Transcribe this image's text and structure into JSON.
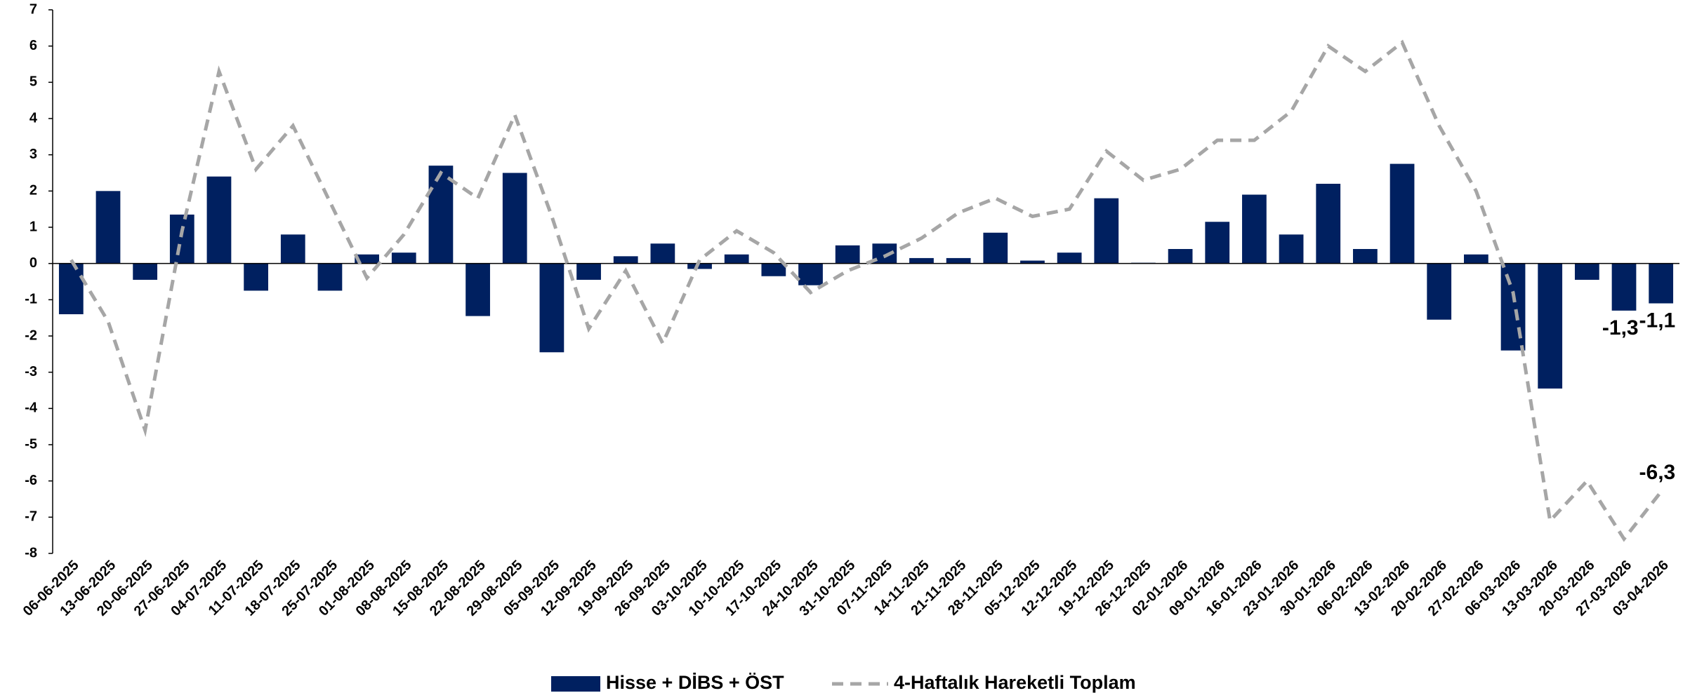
{
  "chart_data": {
    "type": "bar_line",
    "categories": [
      "06-06-2025",
      "13-06-2025",
      "20-06-2025",
      "27-06-2025",
      "04-07-2025",
      "11-07-2025",
      "18-07-2025",
      "25-07-2025",
      "01-08-2025",
      "08-08-2025",
      "15-08-2025",
      "22-08-2025",
      "29-08-2025",
      "05-09-2025",
      "12-09-2025",
      "19-09-2025",
      "26-09-2025",
      "03-10-2025",
      "10-10-2025",
      "17-10-2025",
      "24-10-2025",
      "31-10-2025",
      "07-11-2025",
      "14-11-2025",
      "21-11-2025",
      "28-11-2025",
      "05-12-2025",
      "12-12-2025",
      "19-12-2025",
      "26-12-2025",
      "02-01-2026",
      "09-01-2026",
      "16-01-2026",
      "23-01-2026",
      "30-01-2026",
      "06-02-2026",
      "13-02-2026",
      "20-02-2026",
      "27-02-2026",
      "06-03-2026",
      "13-03-2026",
      "20-03-2026",
      "27-03-2026",
      "03-04-2026"
    ],
    "series": [
      {
        "name": "Hisse + DİBS + ÖST",
        "type": "bar",
        "color": "#002060",
        "values": [
          -1.4,
          2.0,
          -0.45,
          1.35,
          2.4,
          -0.75,
          0.8,
          -0.75,
          0.25,
          0.3,
          2.7,
          -1.45,
          2.5,
          -2.45,
          -0.45,
          0.2,
          0.55,
          -0.15,
          0.25,
          -0.35,
          -0.6,
          0.5,
          0.55,
          0.15,
          0.15,
          0.85,
          0.08,
          0.3,
          1.8,
          0.02,
          0.4,
          1.15,
          1.9,
          0.8,
          2.2,
          0.4,
          2.75,
          -1.55,
          0.25,
          -2.4,
          -3.45,
          -0.45,
          -1.3,
          -1.1
        ],
        "value_labels": [
          null,
          null,
          null,
          null,
          null,
          null,
          null,
          null,
          null,
          null,
          null,
          null,
          null,
          null,
          null,
          null,
          null,
          null,
          null,
          null,
          null,
          null,
          null,
          null,
          null,
          null,
          null,
          null,
          null,
          null,
          null,
          null,
          null,
          null,
          null,
          null,
          null,
          null,
          null,
          null,
          null,
          null,
          "-1,3",
          "-1,1"
        ]
      },
      {
        "name": "4-Haftalık Hareketli Toplam",
        "type": "line",
        "color": "#a6a6a6",
        "dashed": true,
        "values": [
          0.1,
          -1.6,
          -4.6,
          0.9,
          5.3,
          2.6,
          3.8,
          1.7,
          -0.4,
          0.8,
          2.5,
          1.8,
          4.1,
          1.3,
          -1.8,
          -0.2,
          -2.2,
          0.1,
          0.9,
          0.3,
          -0.8,
          -0.2,
          0.2,
          0.7,
          1.4,
          1.8,
          1.3,
          1.5,
          3.1,
          2.3,
          2.6,
          3.4,
          3.4,
          4.2,
          6.0,
          5.3,
          6.1,
          3.8,
          2.0,
          -0.8,
          -7.1,
          -6.0,
          -7.6,
          -6.3
        ],
        "value_labels": [
          null,
          null,
          null,
          null,
          null,
          null,
          null,
          null,
          null,
          null,
          null,
          null,
          null,
          null,
          null,
          null,
          null,
          null,
          null,
          null,
          null,
          null,
          null,
          null,
          null,
          null,
          null,
          null,
          null,
          null,
          null,
          null,
          null,
          null,
          null,
          null,
          null,
          null,
          null,
          null,
          null,
          null,
          null,
          "-6,3"
        ]
      }
    ],
    "ylim": [
      -8,
      7
    ],
    "yticks": [
      -8,
      -7,
      -6,
      -5,
      -4,
      -3,
      -2,
      -1,
      0,
      1,
      2,
      3,
      4,
      5,
      6,
      7
    ],
    "grid": false,
    "legend": "bottom"
  }
}
